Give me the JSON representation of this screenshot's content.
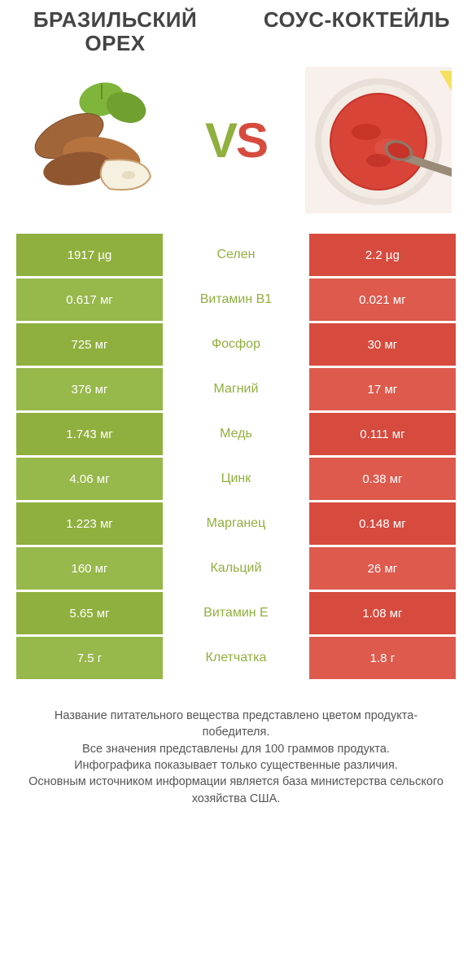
{
  "titles": {
    "left": "БРАЗИЛЬСКИЙ ОРЕХ",
    "right": "СОУС-КОКТЕЙЛЬ"
  },
  "vs": {
    "v": "V",
    "s": "S"
  },
  "colors": {
    "green": "#8fb03e",
    "green_alt": "#97b84a",
    "red": "#d64b3e",
    "red_alt": "#dd5a4d",
    "mid_text": "#8fb03e",
    "white": "#ffffff"
  },
  "rows": [
    {
      "left": "1917 µg",
      "mid": "Селен",
      "right": "2.2 µg"
    },
    {
      "left": "0.617 мг",
      "mid": "Витамин B1",
      "right": "0.021 мг"
    },
    {
      "left": "725 мг",
      "mid": "Фосфор",
      "right": "30 мг"
    },
    {
      "left": "376 мг",
      "mid": "Магний",
      "right": "17 мг"
    },
    {
      "left": "1.743 мг",
      "mid": "Медь",
      "right": "0.111 мг"
    },
    {
      "left": "4.06 мг",
      "mid": "Цинк",
      "right": "0.38 мг"
    },
    {
      "left": "1.223 мг",
      "mid": "Марганец",
      "right": "0.148 мг"
    },
    {
      "left": "160 мг",
      "mid": "Кальций",
      "right": "26 мг"
    },
    {
      "left": "5.65 мг",
      "mid": "Витамин E",
      "right": "1.08 мг"
    },
    {
      "left": "7.5 г",
      "mid": "Клетчатка",
      "right": "1.8 г"
    }
  ],
  "footer": {
    "l1": "Название питательного вещества представлено цветом продукта-победителя.",
    "l2": "Все значения представлены для 100 граммов продукта.",
    "l3": "Инфографика показывает только существенные различия.",
    "l4": "Основным источником информации является база министерства сельского хозяйства США."
  }
}
